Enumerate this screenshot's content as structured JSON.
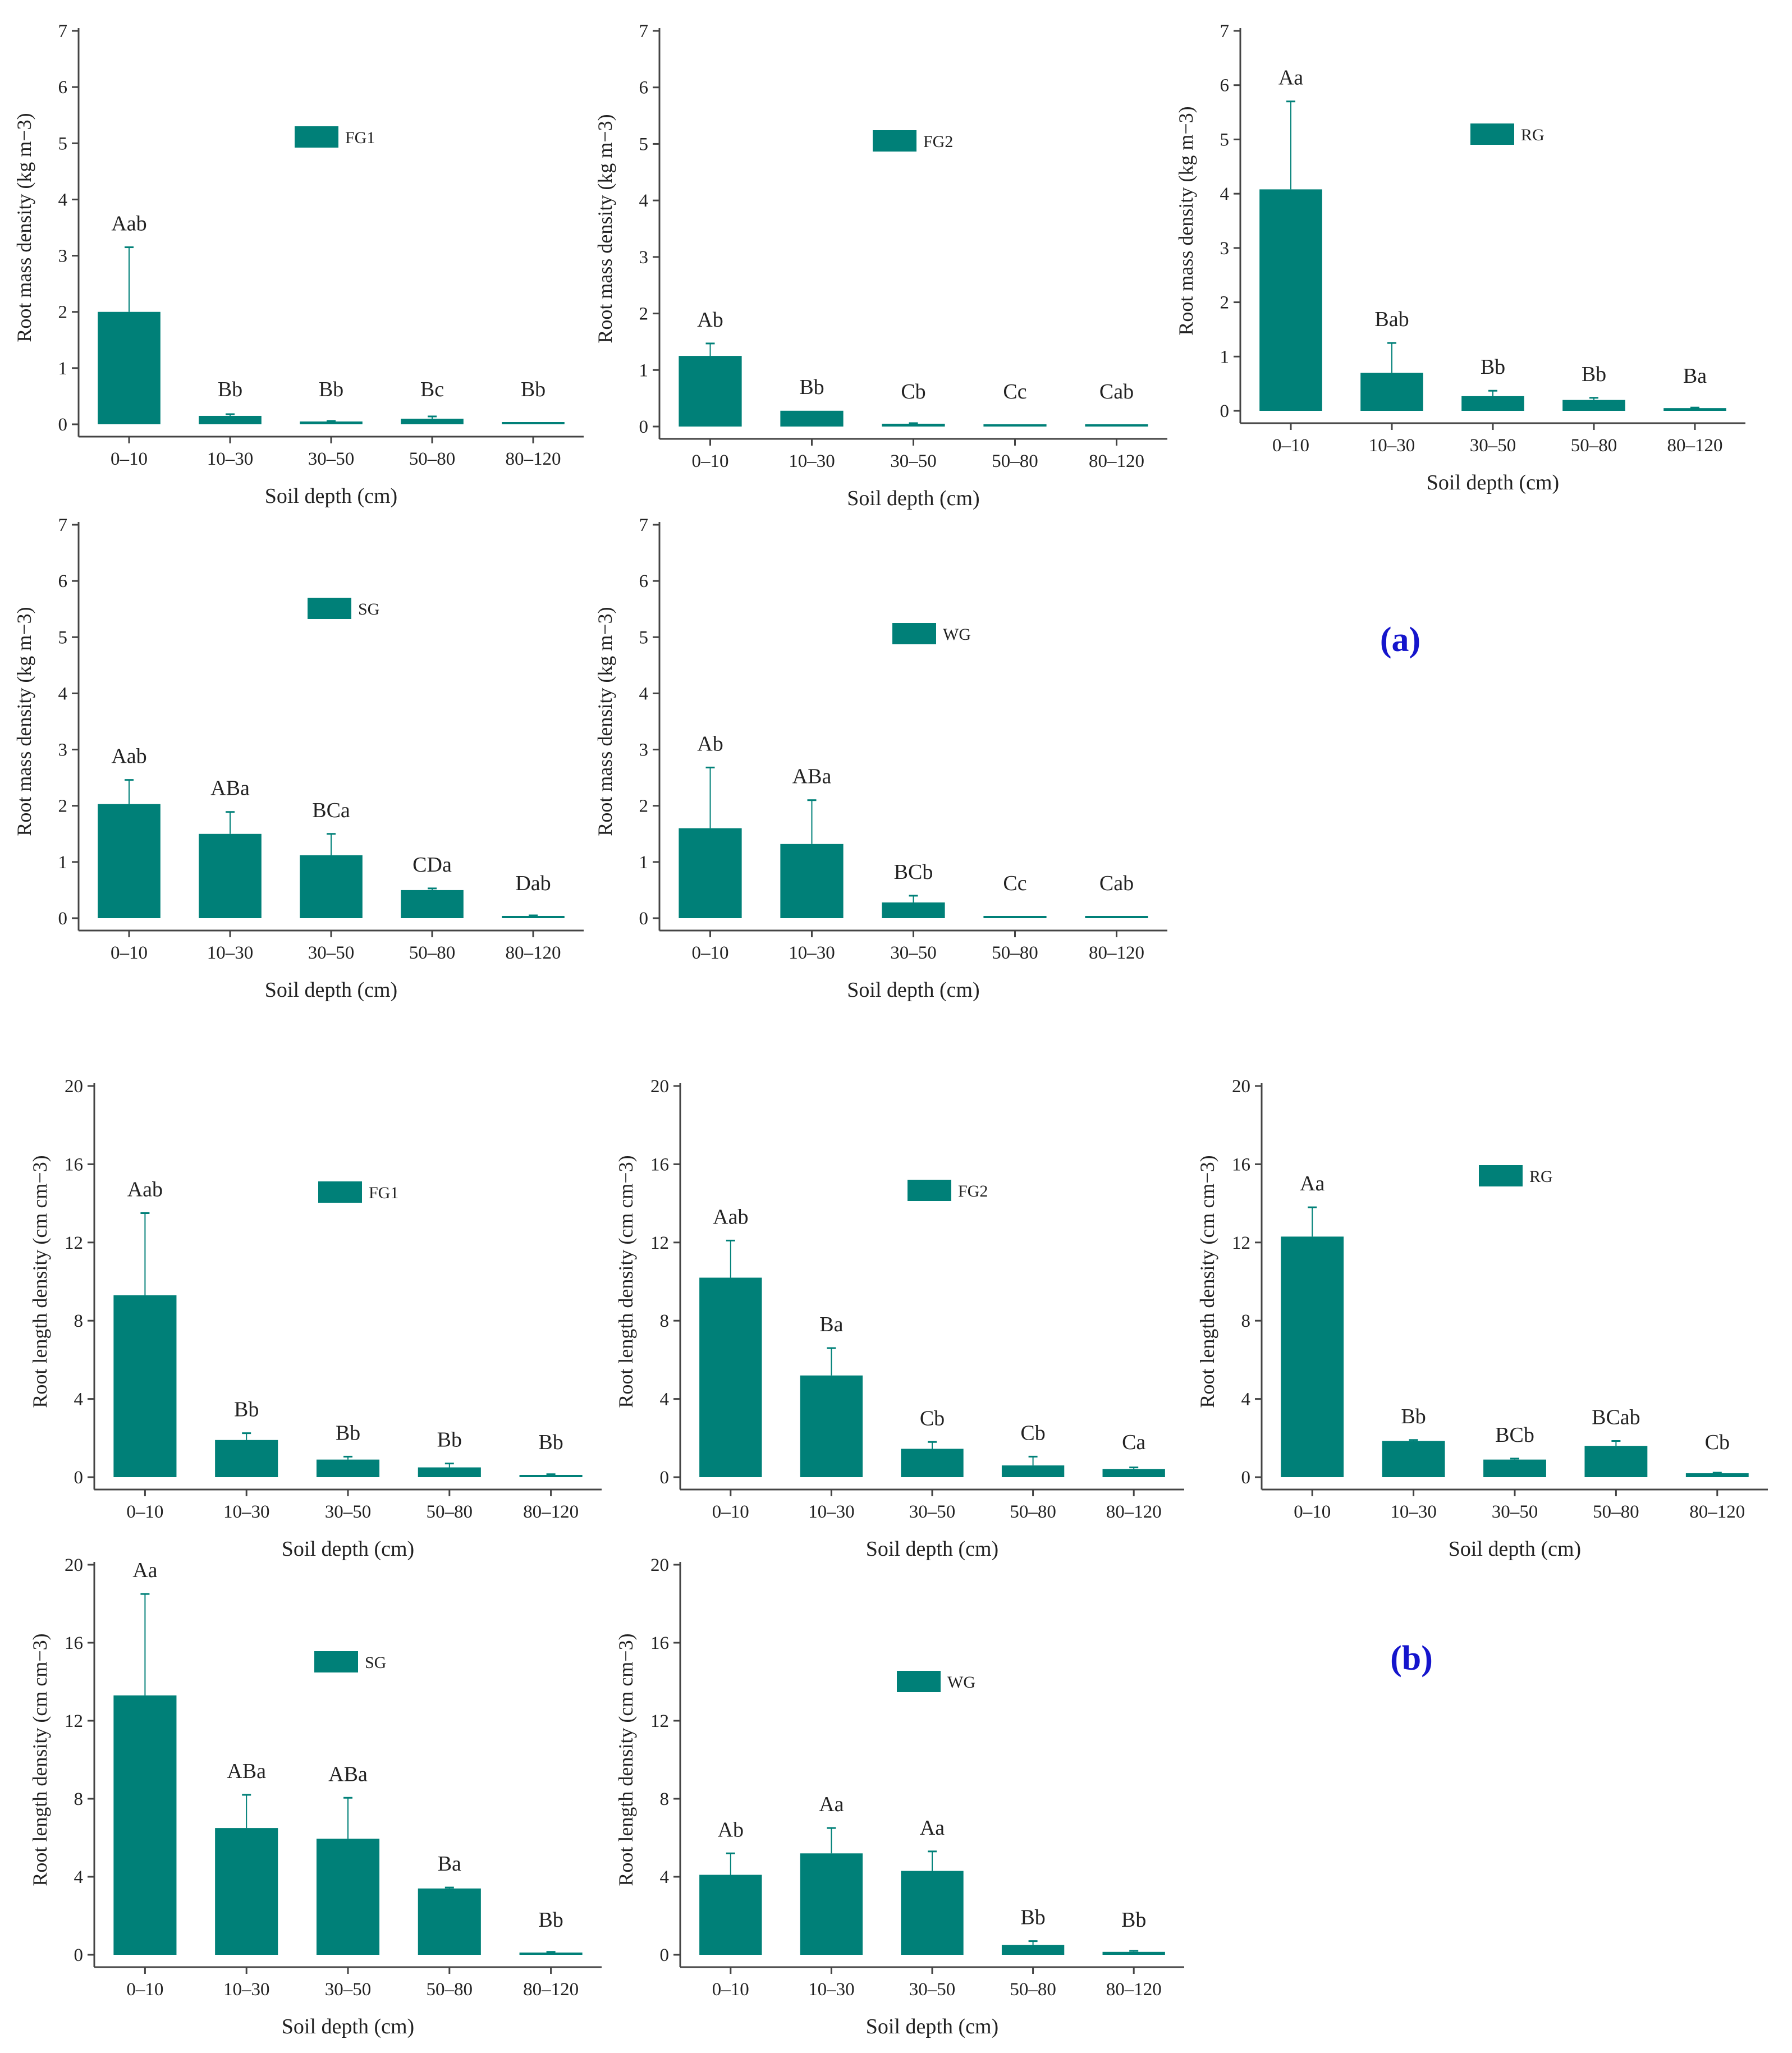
{
  "colors": {
    "bar": "#008078",
    "axis": "#444444",
    "panel_letter": "#1515cc"
  },
  "categories": [
    "0–10",
    "10–30",
    "30–50",
    "50–80",
    "80–120"
  ],
  "panel_labels": [
    "(a)",
    "(b)"
  ],
  "chart_data": [
    {
      "type": "bar",
      "group": "a",
      "legend": "FG1",
      "xlabel": "Soil depth (cm)",
      "ylabel": "Root mass density (kg m−3)",
      "ylim": [
        0,
        7
      ],
      "yticks": [
        0,
        1,
        2,
        3,
        4,
        5,
        6,
        7
      ],
      "categories": [
        "0–10",
        "10–30",
        "30–50",
        "50–80",
        "80–120"
      ],
      "values": [
        2.0,
        0.15,
        0.05,
        0.1,
        0.0
      ],
      "errors": [
        1.15,
        0.03,
        0.01,
        0.04,
        0.0
      ],
      "letters": [
        "Aab",
        "Bb",
        "Bb",
        "Bc",
        "Bb"
      ]
    },
    {
      "type": "bar",
      "group": "a",
      "legend": "FG2",
      "xlabel": "Soil depth (cm)",
      "ylabel": "Root mass density (kg m−3)",
      "ylim": [
        0,
        7
      ],
      "yticks": [
        0,
        1,
        2,
        3,
        4,
        5,
        6,
        7
      ],
      "categories": [
        "0–10",
        "10–30",
        "30–50",
        "50–80",
        "80–120"
      ],
      "values": [
        1.25,
        0.28,
        0.05,
        0.03,
        0.03
      ],
      "errors": [
        0.22,
        0.0,
        0.01,
        0.0,
        0.0
      ],
      "letters": [
        "Ab",
        "Bb",
        "Cb",
        "Cc",
        "Cab"
      ]
    },
    {
      "type": "bar",
      "group": "a",
      "legend": "RG",
      "xlabel": "Soil depth (cm)",
      "ylabel": "Root mass density (kg m−3)",
      "ylim": [
        0,
        7
      ],
      "yticks": [
        0,
        1,
        2,
        3,
        4,
        5,
        6,
        7
      ],
      "categories": [
        "0–10",
        "10–30",
        "30–50",
        "50–80",
        "80–120"
      ],
      "values": [
        4.08,
        0.7,
        0.27,
        0.2,
        0.05
      ],
      "errors": [
        1.62,
        0.55,
        0.1,
        0.04,
        0.01
      ],
      "letters": [
        "Aa",
        "Bab",
        "Bb",
        "Bb",
        "Ba"
      ]
    },
    {
      "type": "bar",
      "group": "a",
      "legend": "SG",
      "xlabel": "Soil depth (cm)",
      "ylabel": "Root mass density (kg m−3)",
      "ylim": [
        0,
        7
      ],
      "yticks": [
        0,
        1,
        2,
        3,
        4,
        5,
        6,
        7
      ],
      "categories": [
        "0–10",
        "10–30",
        "30–50",
        "50–80",
        "80–120"
      ],
      "values": [
        2.03,
        1.5,
        1.12,
        0.5,
        0.04
      ],
      "errors": [
        0.43,
        0.39,
        0.38,
        0.03,
        0.01
      ],
      "letters": [
        "Aab",
        "ABa",
        "BCa",
        "CDa",
        "Dab"
      ]
    },
    {
      "type": "bar",
      "group": "a",
      "legend": "WG",
      "xlabel": "Soil depth (cm)",
      "ylabel": "Root mass density (kg m−3)",
      "ylim": [
        0,
        7
      ],
      "yticks": [
        0,
        1,
        2,
        3,
        4,
        5,
        6,
        7
      ],
      "categories": [
        "0–10",
        "10–30",
        "30–50",
        "50–80",
        "80–120"
      ],
      "values": [
        1.6,
        1.32,
        0.28,
        0.03,
        0.03
      ],
      "errors": [
        1.08,
        0.78,
        0.12,
        0.0,
        0.0
      ],
      "letters": [
        "Ab",
        "ABa",
        "BCb",
        "Cc",
        "Cab"
      ]
    },
    {
      "type": "bar",
      "group": "b",
      "legend": "FG1",
      "xlabel": "Soil depth (cm)",
      "ylabel": "Root length density (cm cm−3)",
      "ylim": [
        0,
        20
      ],
      "yticks": [
        0,
        4,
        8,
        12,
        16,
        20
      ],
      "categories": [
        "0–10",
        "10–30",
        "30–50",
        "50–80",
        "80–120"
      ],
      "values": [
        9.3,
        1.9,
        0.9,
        0.5,
        0.1
      ],
      "errors": [
        4.2,
        0.35,
        0.15,
        0.2,
        0.05
      ],
      "letters": [
        "Aab",
        "Bb",
        "Bb",
        "Bb",
        "Bb"
      ]
    },
    {
      "type": "bar",
      "group": "b",
      "legend": "FG2",
      "xlabel": "Soil depth (cm)",
      "ylabel": "Root length density (cm cm−3)",
      "ylim": [
        0,
        20
      ],
      "yticks": [
        0,
        4,
        8,
        12,
        16,
        20
      ],
      "categories": [
        "0–10",
        "10–30",
        "30–50",
        "50–80",
        "80–120"
      ],
      "values": [
        10.2,
        5.2,
        1.45,
        0.6,
        0.42
      ],
      "errors": [
        1.9,
        1.4,
        0.35,
        0.45,
        0.08
      ],
      "letters": [
        "Aab",
        "Ba",
        "Cb",
        "Cb",
        "Ca"
      ]
    },
    {
      "type": "bar",
      "group": "b",
      "legend": "RG",
      "xlabel": "Soil depth (cm)",
      "ylabel": "Root length density (cm cm−3)",
      "ylim": [
        0,
        20
      ],
      "yticks": [
        0,
        4,
        8,
        12,
        16,
        20
      ],
      "categories": [
        "0–10",
        "10–30",
        "30–50",
        "50–80",
        "80–120"
      ],
      "values": [
        12.3,
        1.85,
        0.9,
        1.6,
        0.2
      ],
      "errors": [
        1.5,
        0.05,
        0.05,
        0.25,
        0.03
      ],
      "letters": [
        "Aa",
        "Bb",
        "BCb",
        "BCab",
        "Cb"
      ]
    },
    {
      "type": "bar",
      "group": "b",
      "legend": "SG",
      "xlabel": "Soil depth (cm)",
      "ylabel": "Root length density (cm cm−3)",
      "ylim": [
        0,
        20
      ],
      "yticks": [
        0,
        4,
        8,
        12,
        16,
        20
      ],
      "categories": [
        "0–10",
        "10–30",
        "30–50",
        "50–80",
        "80–120"
      ],
      "values": [
        13.3,
        6.5,
        5.95,
        3.4,
        0.1
      ],
      "errors": [
        5.2,
        1.7,
        2.1,
        0.05,
        0.05
      ],
      "letters": [
        "Aa",
        "ABa",
        "ABa",
        "Ba",
        "Bb"
      ]
    },
    {
      "type": "bar",
      "group": "b",
      "legend": "WG",
      "xlabel": "Soil depth (cm)",
      "ylabel": "Root length density (cm cm−3)",
      "ylim": [
        0,
        20
      ],
      "yticks": [
        0,
        4,
        8,
        12,
        16,
        20
      ],
      "categories": [
        "0–10",
        "10–30",
        "30–50",
        "50–80",
        "80–120"
      ],
      "values": [
        4.1,
        5.2,
        4.3,
        0.5,
        0.15
      ],
      "errors": [
        1.1,
        1.3,
        1.0,
        0.2,
        0.05
      ],
      "letters": [
        "Ab",
        "Aa",
        "Aa",
        "Bb",
        "Bb"
      ]
    }
  ]
}
